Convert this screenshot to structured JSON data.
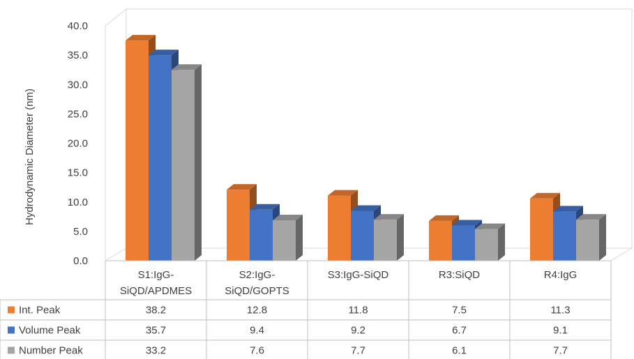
{
  "chart_data": {
    "type": "bar",
    "title": "",
    "xlabel": "",
    "ylabel": "Hydrodynamic Diameter (nm)",
    "ylim": [
      0,
      40
    ],
    "yticks": [
      "0.0",
      "5.0",
      "10.0",
      "15.0",
      "20.0",
      "25.0",
      "30.0",
      "35.0",
      "40.0"
    ],
    "categories": [
      [
        "S1:IgG-",
        "SiQD/APDMES"
      ],
      [
        "S2:IgG-",
        "SiQD/GOPTS"
      ],
      [
        "S3:IgG-SiQD"
      ],
      [
        "R3:SiQD"
      ],
      [
        "R4:IgG"
      ]
    ],
    "series": [
      {
        "name": "Int. Peak",
        "color": "#ED7D31",
        "values": [
          38.2,
          12.8,
          11.8,
          7.5,
          11.3
        ],
        "labels": [
          "38.2",
          "12.8",
          "11.8",
          "7.5",
          "11.3"
        ]
      },
      {
        "name": "Volume Peak",
        "color": "#4472C4",
        "values": [
          35.7,
          9.4,
          9.2,
          6.7,
          9.1
        ],
        "labels": [
          "35.7",
          "9.4",
          "9.2",
          "6.7",
          "9.1"
        ]
      },
      {
        "name": "Number Peak",
        "color": "#A5A5A5",
        "values": [
          33.2,
          7.6,
          7.7,
          6.1,
          7.7
        ],
        "labels": [
          "33.2",
          "7.6",
          "7.7",
          "6.1",
          "7.7"
        ]
      }
    ],
    "legend": "data table below chart",
    "grid": false,
    "three_d": true
  }
}
